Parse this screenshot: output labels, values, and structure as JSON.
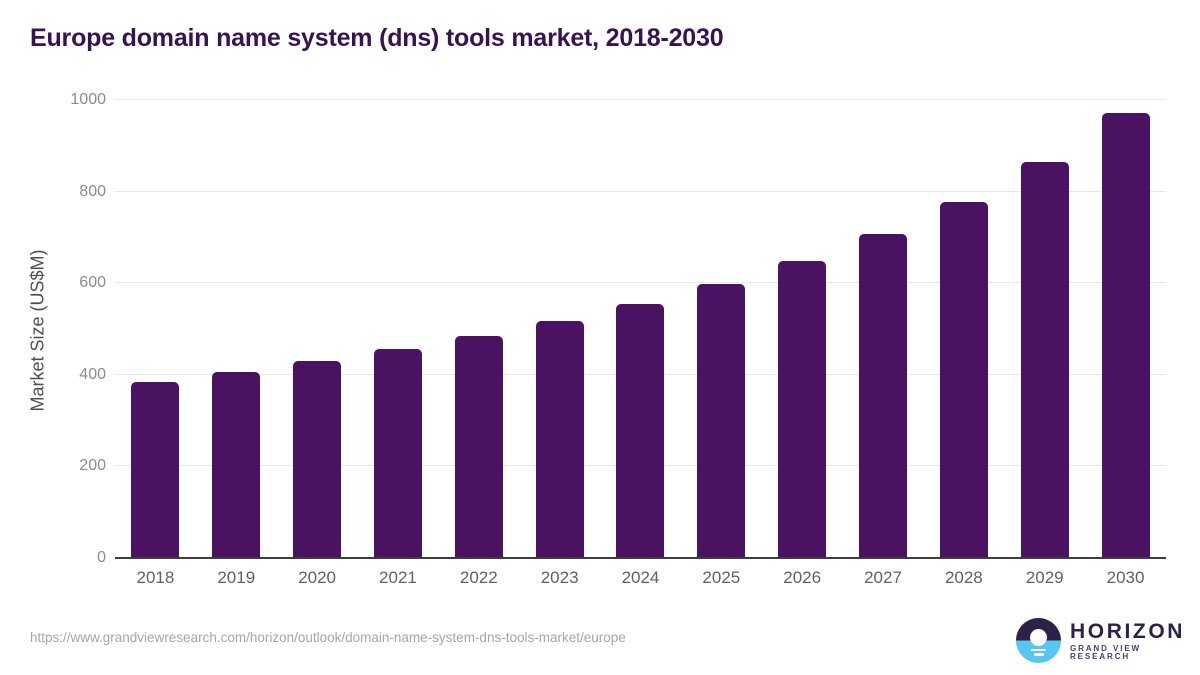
{
  "header": {
    "title": "Europe domain name system (dns) tools market, 2018-2030"
  },
  "chart_data": {
    "type": "bar",
    "title": "Europe domain name system (dns) tools market, 2018-2030",
    "categories": [
      "2018",
      "2019",
      "2020",
      "2021",
      "2022",
      "2023",
      "2024",
      "2025",
      "2026",
      "2027",
      "2028",
      "2029",
      "2030"
    ],
    "values": [
      385,
      407,
      430,
      456,
      485,
      517,
      555,
      598,
      648,
      707,
      778,
      865,
      971
    ],
    "xlabel": "",
    "ylabel": "Market Size (US$M)",
    "ylim": [
      0,
      1000
    ],
    "yticks": [
      0,
      200,
      400,
      600,
      800,
      1000
    ],
    "grid": "horizontal",
    "legend": "none",
    "bar_color": "#4a1260"
  },
  "footer": {
    "source_url": "https://www.grandviewresearch.com/horizon/outlook/domain-name-system-dns-tools-market/europe",
    "logo": {
      "brand": "HORIZON",
      "sub_brand": "GRAND VIEW RESEARCH"
    }
  },
  "colors": {
    "bar": "#4a1260",
    "title_text": "#3a1152",
    "axis_label": "#4f4f4f",
    "y_tick_text": "#8c8c8c",
    "x_tick_text": "#616161",
    "gridline": "#e8e8e8",
    "baseline": "#3d3d3d",
    "url_text": "#a6a6a6",
    "logo_navy": "#2d2147",
    "logo_blue": "#58c6f1",
    "background": "#ffffff"
  }
}
